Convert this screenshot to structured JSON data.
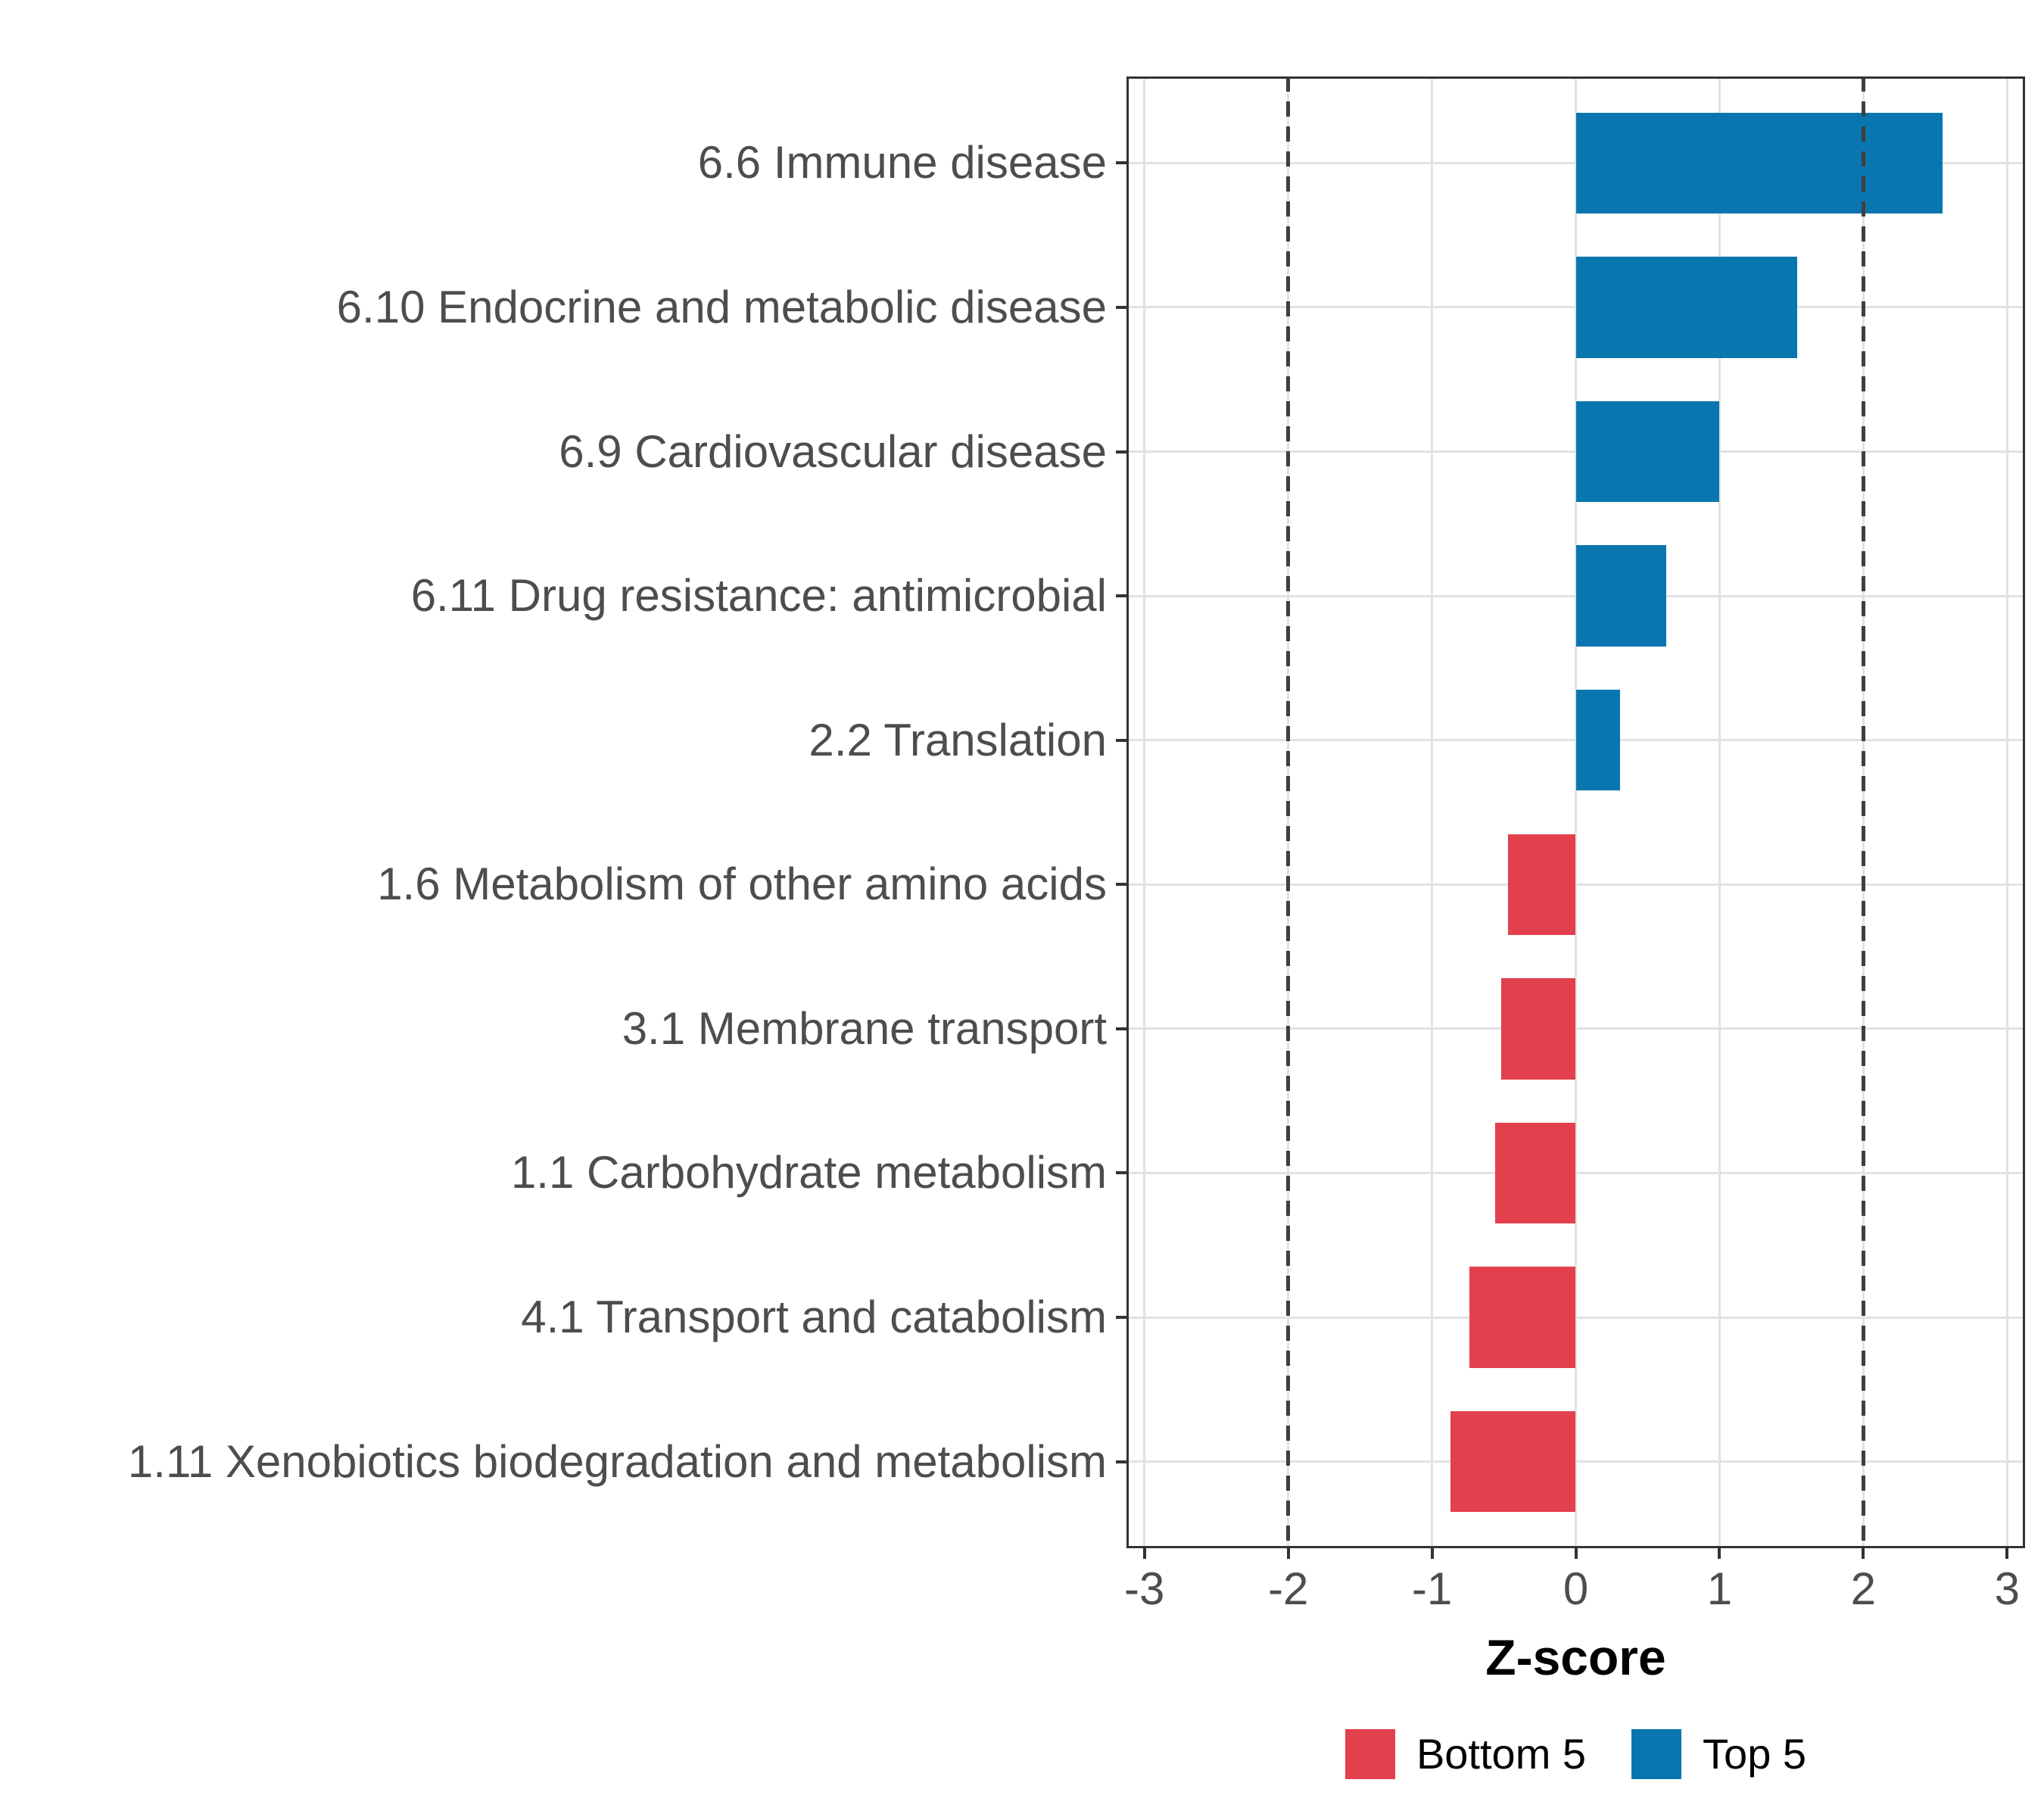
{
  "chart_data": {
    "type": "bar",
    "orientation": "horizontal",
    "title": "",
    "xlabel": "Z-score",
    "categories": [
      "6.6 Immune disease",
      "6.10 Endocrine and metabolic disease",
      "6.9 Cardiovascular disease",
      "6.11 Drug resistance: antimicrobial",
      "2.2 Translation",
      "1.6 Metabolism of other amino acids",
      "3.1 Membrane transport",
      "1.1 Carbohydrate metabolism",
      "4.1 Transport and catabolism",
      "1.11 Xenobiotics biodegradation and metabolism"
    ],
    "series": [
      {
        "name": "Z-score",
        "values": [
          2.55,
          1.54,
          1.0,
          0.63,
          0.31,
          -0.47,
          -0.52,
          -0.56,
          -0.74,
          -0.87
        ],
        "groups": [
          "Top 5",
          "Top 5",
          "Top 5",
          "Top 5",
          "Top 5",
          "Bottom 5",
          "Bottom 5",
          "Bottom 5",
          "Bottom 5",
          "Bottom 5"
        ]
      }
    ],
    "x_ticks": [
      -3,
      -2,
      -1,
      0,
      1,
      2,
      3
    ],
    "xlim": [
      -3.125,
      3.125
    ],
    "reference_lines": [
      -2,
      2
    ],
    "grid": true,
    "legend_position": "bottom",
    "legend": [
      {
        "label": "Bottom 5",
        "color": "#e2404d"
      },
      {
        "label": "Top 5",
        "color": "#0a76b0"
      }
    ],
    "colors": {
      "top5": "#0a76b0",
      "bottom5": "#e2404d",
      "grid": "#e2e2e2",
      "panel_border": "#333333",
      "axis_text": "#4d4d4d",
      "title_text": "#000000",
      "ref_line": "#3f3f3f",
      "background": "#ffffff"
    }
  }
}
